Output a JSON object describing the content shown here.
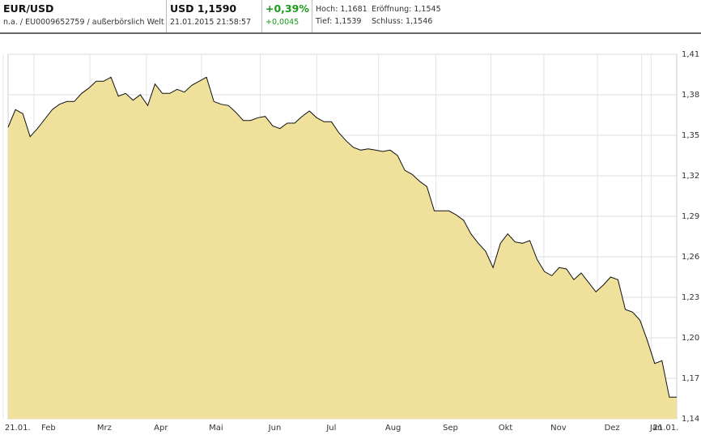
{
  "header": {
    "instrument": "EUR/USD",
    "details": "n.a. / EU0009652759 / außerbörslich Welt",
    "price": "USD 1,1590",
    "timestamp": "21.01.2015 21:58:57",
    "change_pct": "+0,39%",
    "change_abs": "+0,0045",
    "high": "Hoch: 1,1681",
    "open": "Eröffnung: 1,1545",
    "low": "Tief: 1,1539",
    "close": "Schluss: 1,1546"
  },
  "chart_data": {
    "type": "area",
    "color": "#efe09c",
    "line_color": "#111111",
    "grid": true,
    "values": [
      1.356,
      1.369,
      1.366,
      1.349,
      1.355,
      1.362,
      1.369,
      1.373,
      1.375,
      1.375,
      1.381,
      1.385,
      1.39,
      1.39,
      1.393,
      1.379,
      1.381,
      1.376,
      1.38,
      1.372,
      1.388,
      1.381,
      1.381,
      1.384,
      1.382,
      1.387,
      1.39,
      1.393,
      1.375,
      1.373,
      1.372,
      1.367,
      1.361,
      1.361,
      1.363,
      1.364,
      1.357,
      1.355,
      1.359,
      1.359,
      1.364,
      1.368,
      1.363,
      1.36,
      1.36,
      1.352,
      1.346,
      1.341,
      1.339,
      1.34,
      1.339,
      1.338,
      1.339,
      1.335,
      1.324,
      1.321,
      1.316,
      1.312,
      1.294,
      1.294,
      1.294,
      1.291,
      1.287,
      1.277,
      1.27,
      1.264,
      1.252,
      1.27,
      1.277,
      1.271,
      1.27,
      1.272,
      1.258,
      1.249,
      1.246,
      1.252,
      1.251,
      1.243,
      1.248,
      1.241,
      1.234,
      1.239,
      1.245,
      1.243,
      1.221,
      1.219,
      1.213,
      1.198,
      1.181,
      1.183,
      1.156,
      1.156
    ],
    "ylim": [
      1.14,
      1.41
    ],
    "yticks": [
      {
        "value": 1.14,
        "label": "1,14"
      },
      {
        "value": 1.17,
        "label": "1,17"
      },
      {
        "value": 1.2,
        "label": "1,20"
      },
      {
        "value": 1.23,
        "label": "1,23"
      },
      {
        "value": 1.26,
        "label": "1,26"
      },
      {
        "value": 1.29,
        "label": "1,29"
      },
      {
        "value": 1.32,
        "label": "1,32"
      },
      {
        "value": 1.35,
        "label": "1,35"
      },
      {
        "value": 1.38,
        "label": "1,38"
      },
      {
        "value": 1.41,
        "label": "1,41"
      }
    ],
    "xlim": [
      0,
      91
    ],
    "xticks": [
      {
        "value": 1.3,
        "label": "21.01."
      },
      {
        "value": 5.5,
        "label": "Feb"
      },
      {
        "value": 13.1,
        "label": "Mrz"
      },
      {
        "value": 20.8,
        "label": "Apr"
      },
      {
        "value": 28.3,
        "label": "Mai"
      },
      {
        "value": 36.3,
        "label": "Jun"
      },
      {
        "value": 44,
        "label": "Jul"
      },
      {
        "value": 52.4,
        "label": "Aug"
      },
      {
        "value": 60.2,
        "label": "Sep"
      },
      {
        "value": 67.7,
        "label": "Okt"
      },
      {
        "value": 74.9,
        "label": "Nov"
      },
      {
        "value": 82.2,
        "label": "Dez"
      },
      {
        "value": 88.2,
        "label": "Jan"
      },
      {
        "value": 89.5,
        "label": "21.01."
      }
    ]
  }
}
